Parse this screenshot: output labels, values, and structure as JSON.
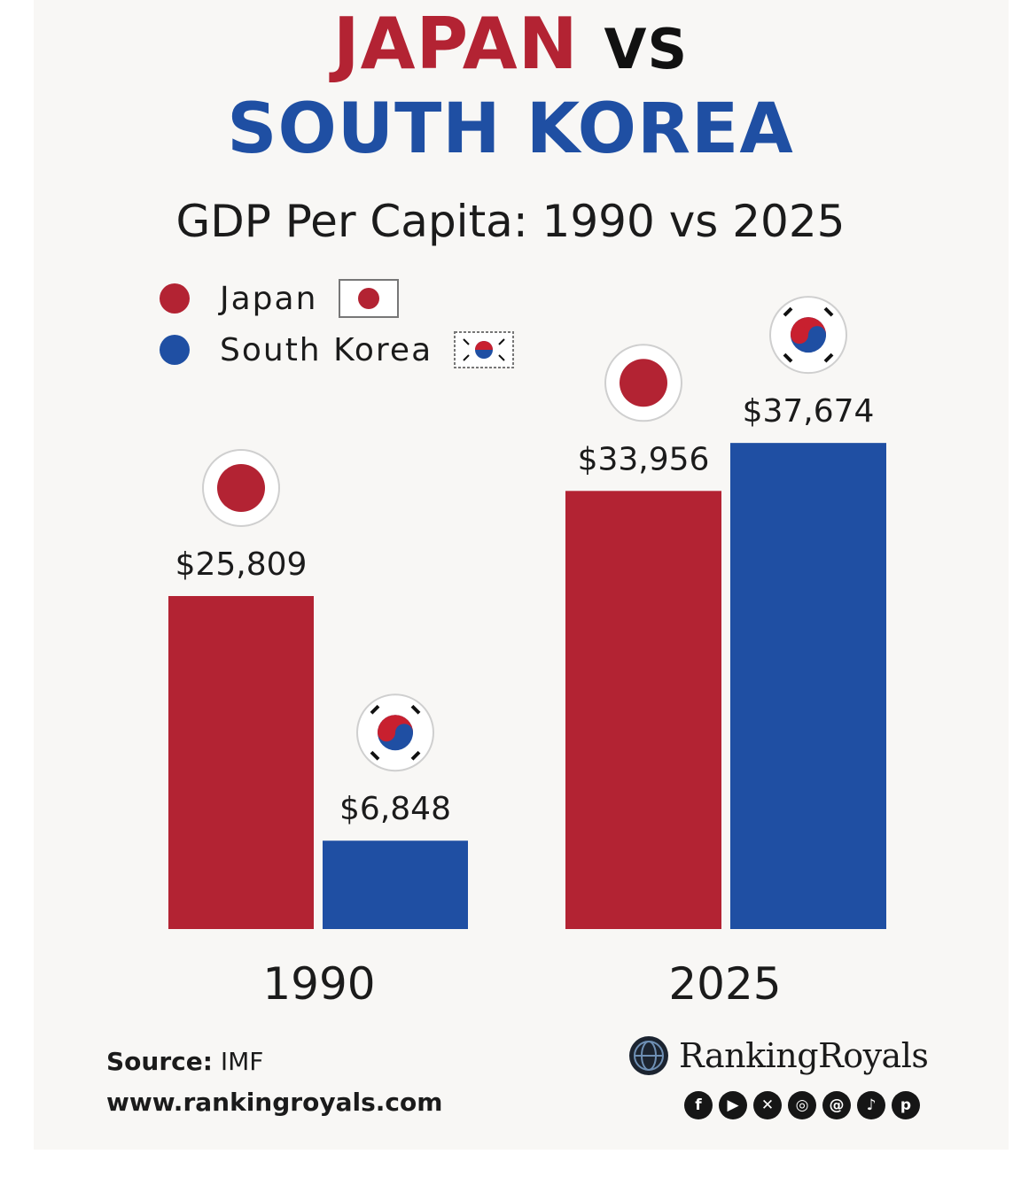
{
  "header": {
    "title_country1": "JAPAN",
    "title_vs": "VS",
    "title_country2": "SOUTH KOREA",
    "subtitle": "GDP Per Capita: 1990 vs 2025"
  },
  "legend": [
    {
      "label": "Japan",
      "color": "#b32333",
      "icon": "japan-flag-icon"
    },
    {
      "label": "South Korea",
      "color": "#1f4fa3",
      "icon": "south-korea-flag-icon"
    }
  ],
  "chart_data": {
    "type": "bar",
    "title": "GDP Per Capita: 1990 vs 2025",
    "categories": [
      "1990",
      "2025"
    ],
    "series": [
      {
        "name": "Japan",
        "color": "#b32333",
        "values": [
          25809,
          33956
        ],
        "labels": [
          "$25,809",
          "$33,956"
        ]
      },
      {
        "name": "South Korea",
        "color": "#1f4fa3",
        "values": [
          6848,
          37674
        ],
        "labels": [
          "$6,848",
          "$37,674"
        ]
      }
    ],
    "xlabel": "",
    "ylabel": "",
    "grid": false,
    "legend_position": "top-left"
  },
  "footer": {
    "source_label": "Source:",
    "source_value": " IMF",
    "url": "www.rankingroyals.com",
    "brand": "RankingRoyals",
    "socials": [
      "facebook-icon",
      "youtube-icon",
      "x-icon",
      "instagram-icon",
      "threads-icon",
      "tiktok-icon",
      "pinterest-icon"
    ]
  }
}
